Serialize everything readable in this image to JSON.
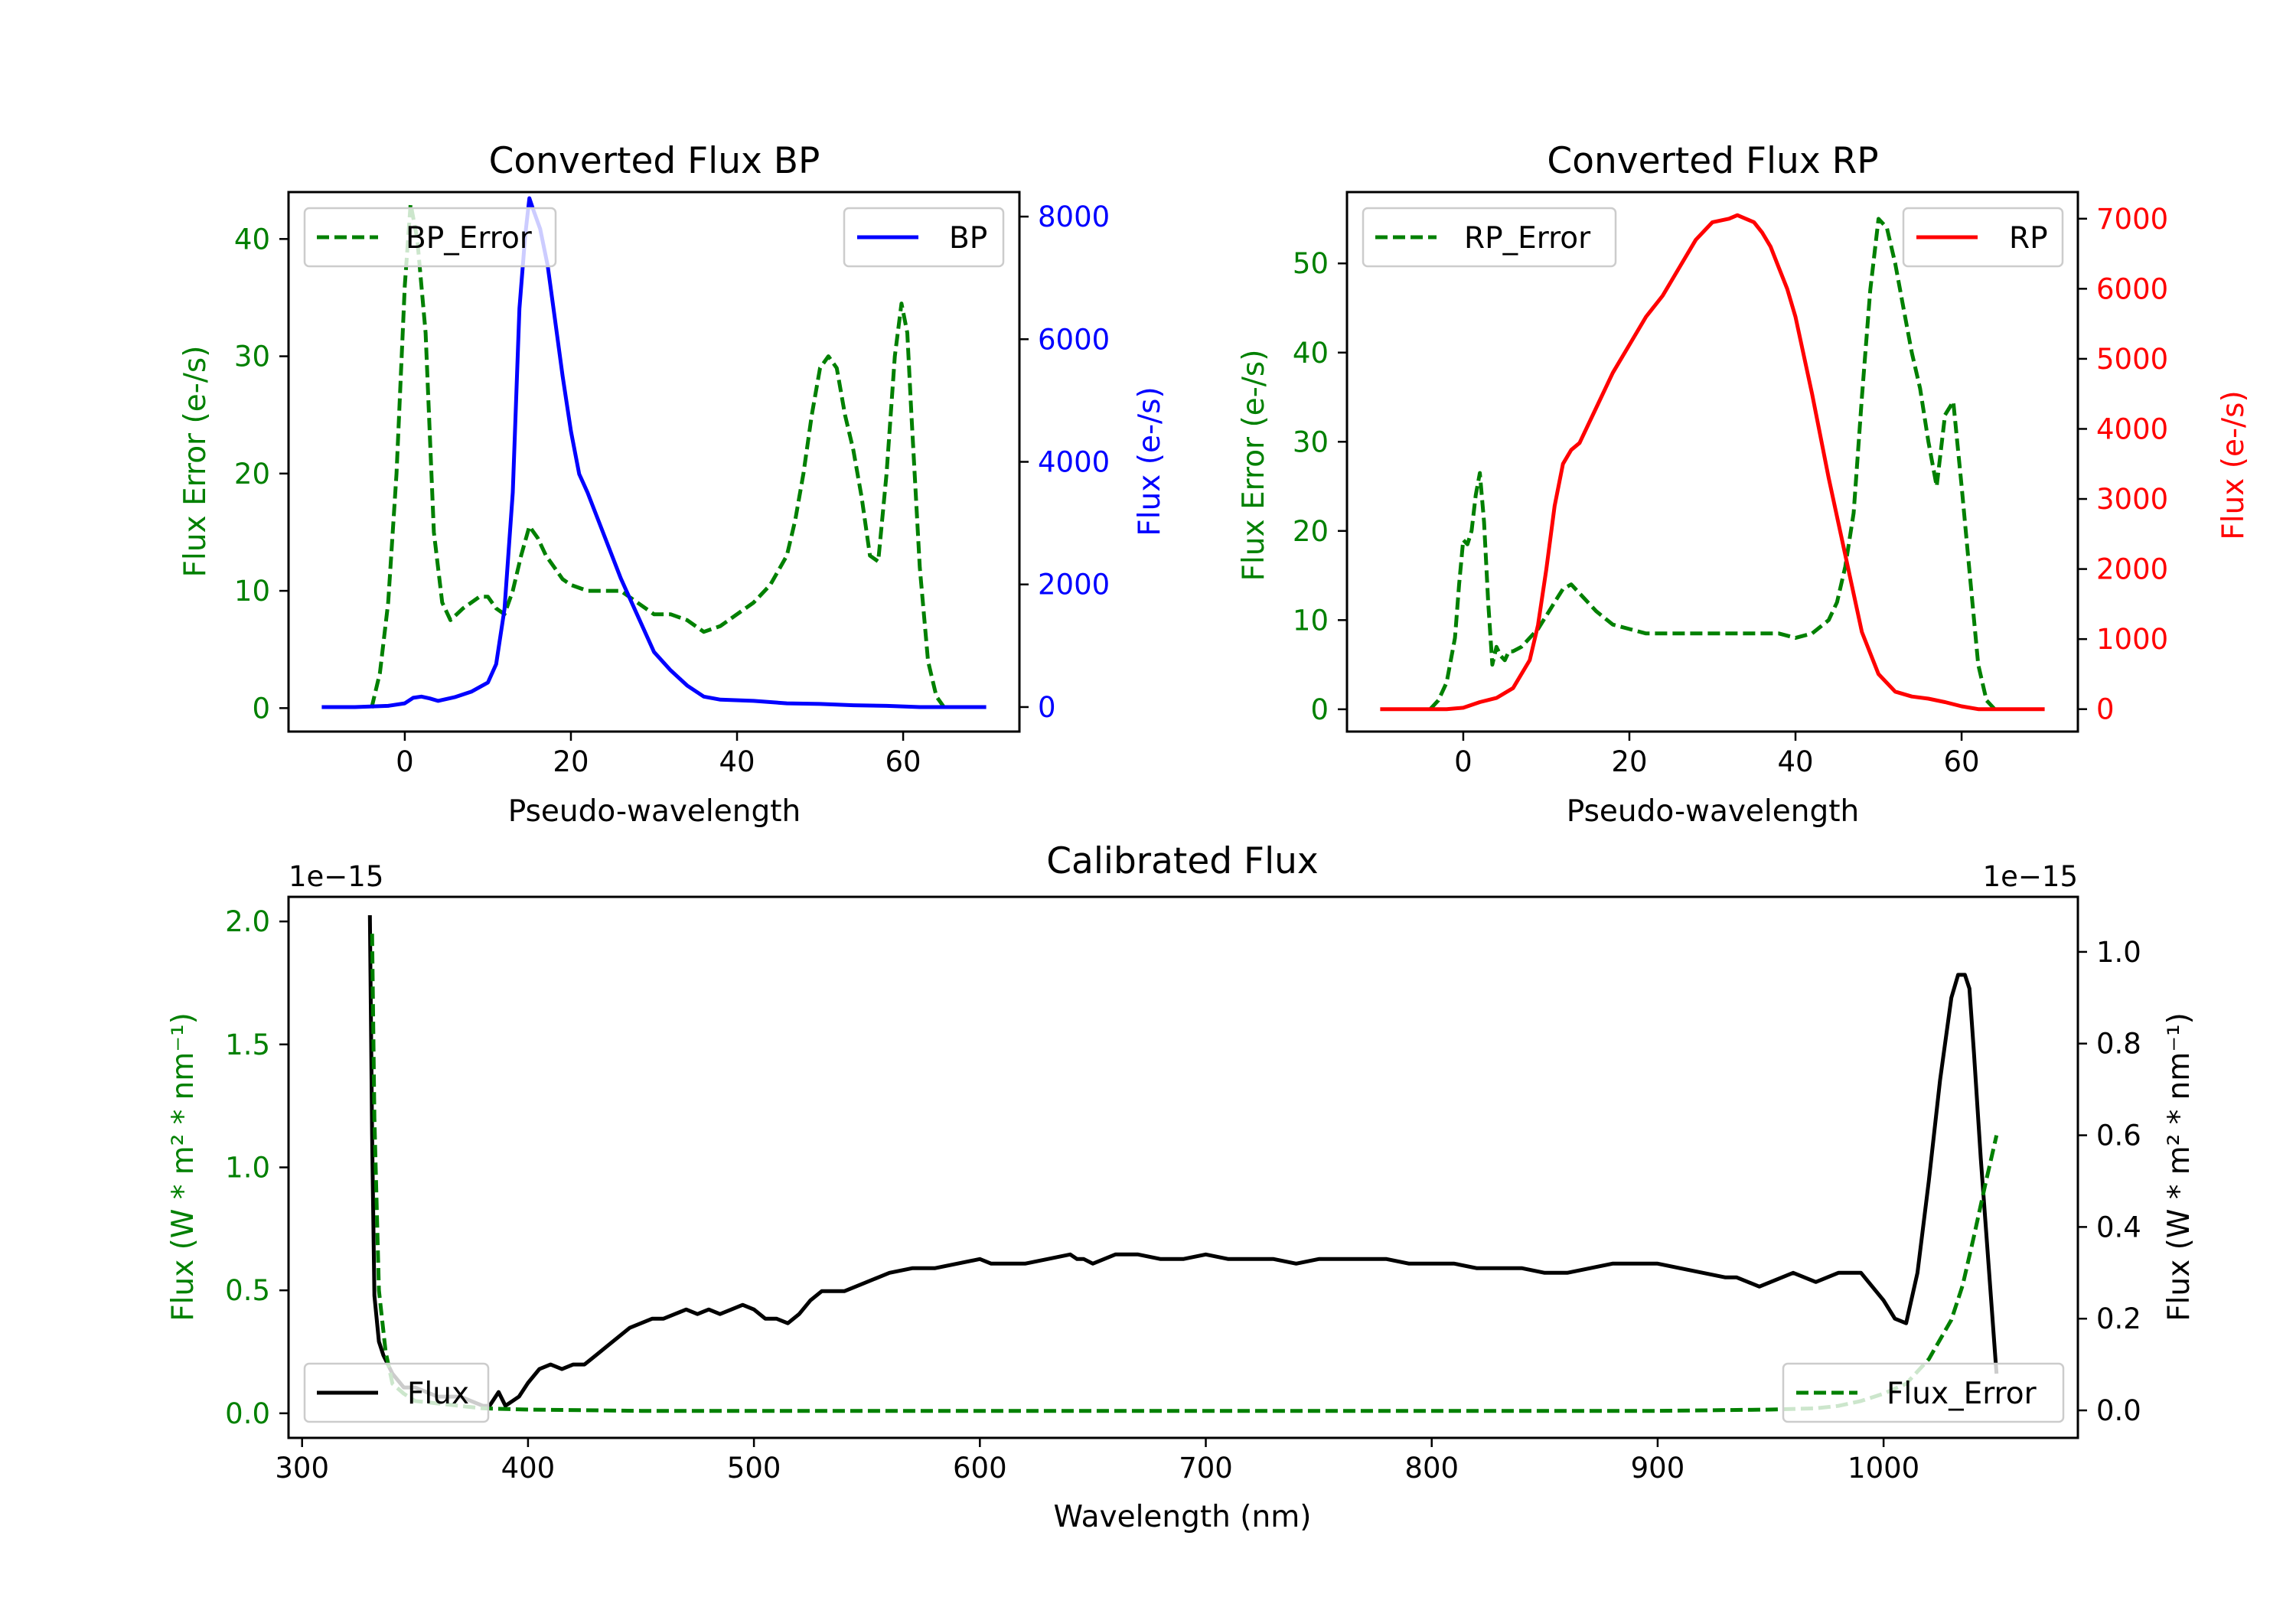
{
  "colors": {
    "green": "#008000",
    "blue": "#0000ff",
    "red": "#ff0000",
    "black": "#000000"
  },
  "chart_data": [
    {
      "type": "line",
      "title": "Converted Flux BP",
      "xlabel": "Pseudo-wavelength",
      "ylabel_left": "Flux Error (e-/s)",
      "ylabel_right": "Flux (e-/s)",
      "xlim": [
        -14,
        74
      ],
      "ylim_left": [
        -2,
        44
      ],
      "ylim_right": [
        -400,
        8400
      ],
      "xticks": [
        0,
        20,
        40,
        60
      ],
      "yticks_left": [
        0,
        10,
        20,
        30,
        40
      ],
      "yticks_right": [
        0,
        2000,
        4000,
        6000,
        8000
      ],
      "series": [
        {
          "name": "BP_Error",
          "axis": "left",
          "color": "green",
          "style": "dashed",
          "legend": "upper-left",
          "x": [
            -4,
            -3,
            -2,
            -1,
            0,
            0.7,
            1.5,
            2.5,
            3.5,
            4.5,
            5.5,
            7,
            8,
            9,
            10,
            11,
            12,
            13,
            14,
            15,
            16,
            17,
            18,
            19,
            20,
            22,
            24,
            26,
            28,
            30,
            32,
            34,
            36,
            38,
            40,
            42,
            44,
            46,
            47,
            48,
            49,
            50,
            51,
            52,
            53,
            54,
            55,
            56,
            57,
            58,
            59,
            59.8,
            60.5,
            61,
            62,
            63,
            64,
            65
          ],
          "values": [
            0,
            3,
            9,
            20,
            36,
            43,
            40,
            32,
            15,
            9,
            7.5,
            8.5,
            9,
            9.5,
            9.5,
            8.5,
            8,
            10,
            13,
            15.5,
            14.5,
            13,
            12,
            11,
            10.5,
            10,
            10,
            10,
            9,
            8,
            8,
            7.5,
            6.5,
            7,
            8,
            9,
            10.5,
            13,
            16,
            20,
            25,
            29,
            30,
            29,
            25,
            22,
            18,
            13,
            12.5,
            20,
            30,
            34.5,
            32,
            25,
            12,
            4,
            1,
            0
          ]
        },
        {
          "name": "BP",
          "axis": "right",
          "color": "blue",
          "style": "solid",
          "legend": "upper-right",
          "x": [
            -10,
            -6,
            -2,
            0,
            1,
            2,
            3,
            4,
            6,
            8,
            10,
            11,
            12,
            13,
            13.8,
            14.5,
            15,
            15.5,
            16.3,
            17.2,
            18,
            19,
            20,
            21,
            22,
            24,
            26,
            28,
            30,
            32,
            34,
            36,
            38,
            42,
            46,
            50,
            54,
            58,
            62,
            66,
            70
          ],
          "values": [
            0,
            0,
            20,
            60,
            150,
            170,
            140,
            100,
            160,
            250,
            400,
            700,
            1600,
            3500,
            6500,
            7700,
            8300,
            8100,
            7800,
            7200,
            6400,
            5400,
            4500,
            3800,
            3500,
            2800,
            2100,
            1500,
            900,
            600,
            350,
            170,
            120,
            100,
            60,
            50,
            30,
            20,
            0,
            0,
            0
          ]
        }
      ]
    },
    {
      "type": "line",
      "title": "Converted Flux RP",
      "xlabel": "Pseudo-wavelength",
      "ylabel_left": "Flux Error (e-/s)",
      "ylabel_right": "Flux (e-/s)",
      "xlim": [
        -14,
        74
      ],
      "ylim_left": [
        -2.5,
        58
      ],
      "ylim_right": [
        -320,
        7380
      ],
      "xticks": [
        0,
        20,
        40,
        60
      ],
      "yticks_left": [
        0,
        10,
        20,
        30,
        40,
        50
      ],
      "yticks_right": [
        0,
        1000,
        2000,
        3000,
        4000,
        5000,
        6000,
        7000
      ],
      "series": [
        {
          "name": "RP_Error",
          "axis": "left",
          "color": "green",
          "style": "dashed",
          "legend": "upper-left",
          "x": [
            -4,
            -3,
            -2,
            -1,
            -0.5,
            0,
            0.5,
            1,
            1.5,
            2,
            2.5,
            3,
            3.5,
            4,
            4.5,
            5,
            5.5,
            6,
            7,
            8,
            9,
            10,
            11,
            12,
            13,
            14,
            16,
            18,
            20,
            22,
            24,
            26,
            28,
            30,
            32,
            34,
            36,
            38,
            40,
            42,
            44,
            45,
            46,
            47,
            48,
            49,
            50,
            51,
            52,
            53,
            54,
            55,
            56,
            57,
            58,
            59,
            60,
            61,
            62,
            63,
            64
          ],
          "values": [
            0,
            1,
            3,
            8,
            14,
            19,
            18.5,
            20,
            24,
            26.5,
            21,
            12,
            5,
            7,
            6,
            5.5,
            6.5,
            6.5,
            7,
            8,
            9,
            10.5,
            12,
            13.5,
            14,
            13,
            11,
            9.5,
            9,
            8.5,
            8.5,
            8.5,
            8.5,
            8.5,
            8.5,
            8.5,
            8.5,
            8.5,
            8,
            8.5,
            10,
            12,
            16,
            22,
            35,
            47,
            55,
            54,
            50,
            45,
            40,
            36,
            30,
            25,
            33,
            34.5,
            25,
            15,
            5,
            1,
            0
          ]
        },
        {
          "name": "RP",
          "axis": "right",
          "color": "red",
          "style": "solid",
          "legend": "upper-right",
          "x": [
            -10,
            -2,
            0,
            2,
            4,
            6,
            8,
            9,
            10,
            11,
            12,
            13,
            14,
            16,
            18,
            20,
            22,
            24,
            26,
            28,
            30,
            32,
            33,
            34,
            35,
            36,
            37,
            38,
            39,
            40,
            42,
            44,
            46,
            48,
            50,
            52,
            54,
            56,
            58,
            60,
            62,
            66,
            70
          ],
          "values": [
            0,
            0,
            20,
            100,
            160,
            300,
            700,
            1200,
            2000,
            2900,
            3500,
            3700,
            3800,
            4300,
            4800,
            5200,
            5600,
            5900,
            6300,
            6700,
            6950,
            7000,
            7050,
            7000,
            6950,
            6800,
            6600,
            6300,
            6000,
            5600,
            4500,
            3300,
            2200,
            1100,
            500,
            250,
            180,
            150,
            100,
            40,
            0,
            0,
            0
          ]
        }
      ]
    },
    {
      "type": "line",
      "title": "Calibrated Flux",
      "xlabel": "Wavelength (nm)",
      "ylabel_left": "Flux (W * m² * nm⁻¹)",
      "ylabel_right": "Flux (W * m² * nm⁻¹)",
      "offset_left": "1e−15",
      "offset_right": "1e−15",
      "xlim": [
        294,
        1086
      ],
      "ylim_left": [
        -0.1,
        2.1
      ],
      "ylim_right": [
        -0.06,
        1.12
      ],
      "xticks": [
        300,
        400,
        500,
        600,
        700,
        800,
        900,
        1000
      ],
      "yticks_left": [
        "0.0",
        "0.5",
        "1.0",
        "1.5",
        "2.0"
      ],
      "yticks_right": [
        "0.0",
        "0.2",
        "0.4",
        "0.6",
        "0.8",
        "1.0"
      ],
      "series": [
        {
          "name": "Flux",
          "axis": "right",
          "color": "black",
          "style": "solid",
          "legend": "lower-left",
          "x": [
            330,
            331,
            332,
            334,
            336,
            340,
            345,
            350,
            355,
            360,
            365,
            370,
            375,
            380,
            383,
            387,
            390,
            393,
            396,
            400,
            405,
            410,
            415,
            420,
            425,
            430,
            435,
            440,
            445,
            450,
            455,
            460,
            465,
            470,
            475,
            480,
            485,
            490,
            495,
            500,
            505,
            510,
            515,
            520,
            525,
            530,
            535,
            540,
            545,
            550,
            555,
            560,
            570,
            580,
            590,
            600,
            605,
            610,
            620,
            630,
            640,
            643,
            646,
            650,
            660,
            670,
            680,
            690,
            700,
            710,
            720,
            730,
            740,
            750,
            760,
            770,
            780,
            790,
            800,
            810,
            820,
            830,
            840,
            850,
            860,
            870,
            880,
            890,
            900,
            910,
            920,
            930,
            935,
            940,
            945,
            950,
            960,
            970,
            980,
            990,
            1000,
            1005,
            1010,
            1015,
            1020,
            1025,
            1030,
            1033,
            1036,
            1038,
            1040,
            1043,
            1046,
            1050
          ],
          "values": [
            1.08,
            0.6,
            0.25,
            0.15,
            0.12,
            0.08,
            0.05,
            0.05,
            0.04,
            0.03,
            0.03,
            0.03,
            0.02,
            0.01,
            0.01,
            0.04,
            0.01,
            0.02,
            0.03,
            0.06,
            0.09,
            0.1,
            0.09,
            0.1,
            0.1,
            0.12,
            0.14,
            0.16,
            0.18,
            0.19,
            0.2,
            0.2,
            0.21,
            0.22,
            0.21,
            0.22,
            0.21,
            0.22,
            0.23,
            0.22,
            0.2,
            0.2,
            0.19,
            0.21,
            0.24,
            0.26,
            0.26,
            0.26,
            0.27,
            0.28,
            0.29,
            0.3,
            0.31,
            0.31,
            0.32,
            0.33,
            0.32,
            0.32,
            0.32,
            0.33,
            0.34,
            0.33,
            0.33,
            0.32,
            0.34,
            0.34,
            0.33,
            0.33,
            0.34,
            0.33,
            0.33,
            0.33,
            0.32,
            0.33,
            0.33,
            0.33,
            0.33,
            0.32,
            0.32,
            0.32,
            0.31,
            0.31,
            0.31,
            0.3,
            0.3,
            0.31,
            0.32,
            0.32,
            0.32,
            0.31,
            0.3,
            0.29,
            0.29,
            0.28,
            0.27,
            0.28,
            0.3,
            0.28,
            0.3,
            0.3,
            0.24,
            0.2,
            0.19,
            0.3,
            0.5,
            0.72,
            0.9,
            0.95,
            0.95,
            0.92,
            0.78,
            0.55,
            0.35,
            0.08
          ]
        },
        {
          "name": "Flux_Error",
          "axis": "left",
          "color": "green",
          "style": "dashed",
          "legend": "lower-right",
          "x": [
            331,
            332,
            334,
            337,
            340,
            345,
            350,
            360,
            370,
            380,
            400,
            450,
            500,
            600,
            700,
            800,
            900,
            950,
            970,
            980,
            990,
            1000,
            1010,
            1020,
            1030,
            1035,
            1040,
            1045,
            1050
          ],
          "values": [
            1.95,
            1.2,
            0.5,
            0.25,
            0.12,
            0.08,
            0.05,
            0.04,
            0.03,
            0.02,
            0.015,
            0.01,
            0.01,
            0.01,
            0.01,
            0.01,
            0.01,
            0.015,
            0.02,
            0.03,
            0.05,
            0.08,
            0.12,
            0.22,
            0.38,
            0.52,
            0.72,
            0.93,
            1.13
          ]
        }
      ]
    }
  ]
}
